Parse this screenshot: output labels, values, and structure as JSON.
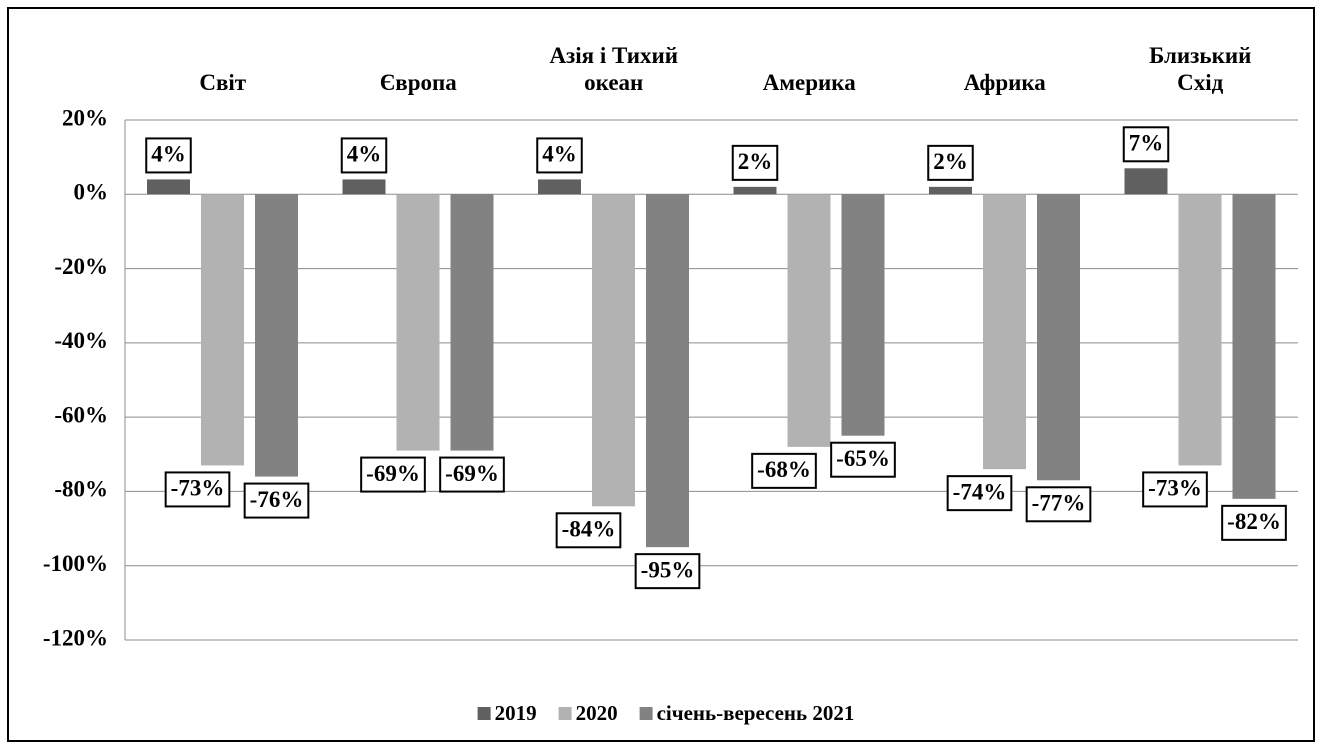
{
  "chart_data": {
    "type": "bar",
    "categories": [
      "Світ",
      "Європа",
      "Азія і Тихий\nокеан",
      "Америка",
      "Африка",
      "Близький\nСхід"
    ],
    "series": [
      {
        "name": "2019",
        "color": "#606060",
        "values": [
          4,
          4,
          4,
          2,
          2,
          7
        ],
        "value_labels": [
          "4%",
          "4%",
          "4%",
          "2%",
          "2%",
          "7%"
        ]
      },
      {
        "name": "2020",
        "color": "#b2b2b2",
        "values": [
          -73,
          -69,
          -84,
          -68,
          -74,
          -73
        ],
        "value_labels": [
          "-73%",
          "-69%",
          "-84%",
          "-68%",
          "-74%",
          "-73%"
        ]
      },
      {
        "name": "січень-вересень 2021",
        "color": "#828282",
        "values": [
          -76,
          -69,
          -95,
          -65,
          -77,
          -82
        ],
        "value_labels": [
          "-76%",
          "-69%",
          "-95%",
          "-65%",
          "-77%",
          "-82%"
        ]
      }
    ],
    "ylim": [
      -120,
      20
    ],
    "yticks": [
      {
        "value": 20,
        "label": "20%"
      },
      {
        "value": 0,
        "label": "0%"
      },
      {
        "value": -20,
        "label": "-20%"
      },
      {
        "value": -40,
        "label": "-40%"
      },
      {
        "value": -60,
        "label": "-60%"
      },
      {
        "value": -80,
        "label": "-80%"
      },
      {
        "value": -100,
        "label": "-100%"
      },
      {
        "value": -120,
        "label": "-120%"
      }
    ],
    "grid": true
  }
}
